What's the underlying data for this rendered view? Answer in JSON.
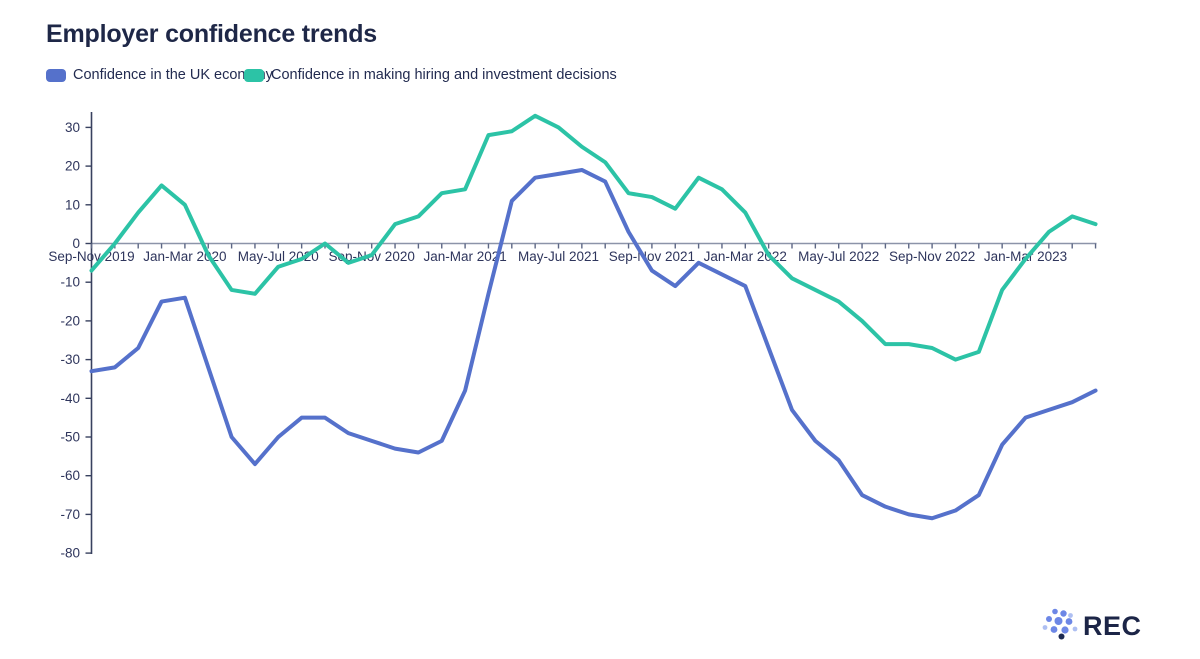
{
  "title": "Employer confidence trends",
  "legend": [
    {
      "label": "Confidence in the UK economy",
      "color": "#5571cb"
    },
    {
      "label": "Confidence in making hiring and investment decisions",
      "color": "#2cc3a6"
    }
  ],
  "chart_data": {
    "type": "line",
    "n_points": 44,
    "x_tick_labels": [
      "Sep-Nov 2019",
      "Jan-Mar 2020",
      "May-Jul 2020",
      "Sep-Nov 2020",
      "Jan-Mar 2021",
      "May-Jul 2021",
      "Sep-Nov 2021",
      "Jan-Mar 2022",
      "May-Jul 2022",
      "Sep-Nov 2022",
      "Jan-Mar 2023"
    ],
    "x_label_every": 4,
    "ylim": [
      -80,
      30
    ],
    "y_tick_step": 10,
    "grid": false,
    "legend_position": "top",
    "series": [
      {
        "name": "Confidence in the UK economy",
        "color": "#5571cb",
        "values": [
          -33,
          -32,
          -27,
          -15,
          -14,
          -32,
          -50,
          -57,
          -50,
          -45,
          -45,
          -49,
          -51,
          -53,
          -54,
          -51,
          -38,
          -13,
          11,
          17,
          18,
          19,
          16,
          3,
          -7,
          -11,
          -5,
          -8,
          -11,
          -27,
          -43,
          -51,
          -56,
          -65,
          -68,
          -70,
          -71,
          -69,
          -65,
          -52,
          -45,
          -43,
          -41,
          -38
        ]
      },
      {
        "name": "Confidence in making hiring and investment decisions",
        "color": "#2cc3a6",
        "values": [
          -7,
          0,
          8,
          15,
          10,
          -3,
          -12,
          -13,
          -6,
          -4,
          0,
          -5,
          -3,
          5,
          7,
          13,
          14,
          28,
          29,
          33,
          30,
          25,
          21,
          13,
          12,
          9,
          17,
          14,
          8,
          -3,
          -9,
          -12,
          -15,
          -20,
          -26,
          -26,
          -27,
          -30,
          -28,
          -12,
          -4,
          3,
          7,
          5
        ]
      }
    ]
  },
  "logo": {
    "text": "REC",
    "text_color": "#1c2547",
    "dot_colors": {
      "medium": "#6d87e6",
      "light": "#aebff2",
      "dark": "#1d2a52"
    }
  },
  "colors": {
    "title": "#1e2747",
    "x_axis_line": "#8c94a9",
    "tick_mark": "#5d6785",
    "y_axis_line": "#38415f",
    "tick_text": "#2e355c",
    "background": "#ffffff"
  }
}
